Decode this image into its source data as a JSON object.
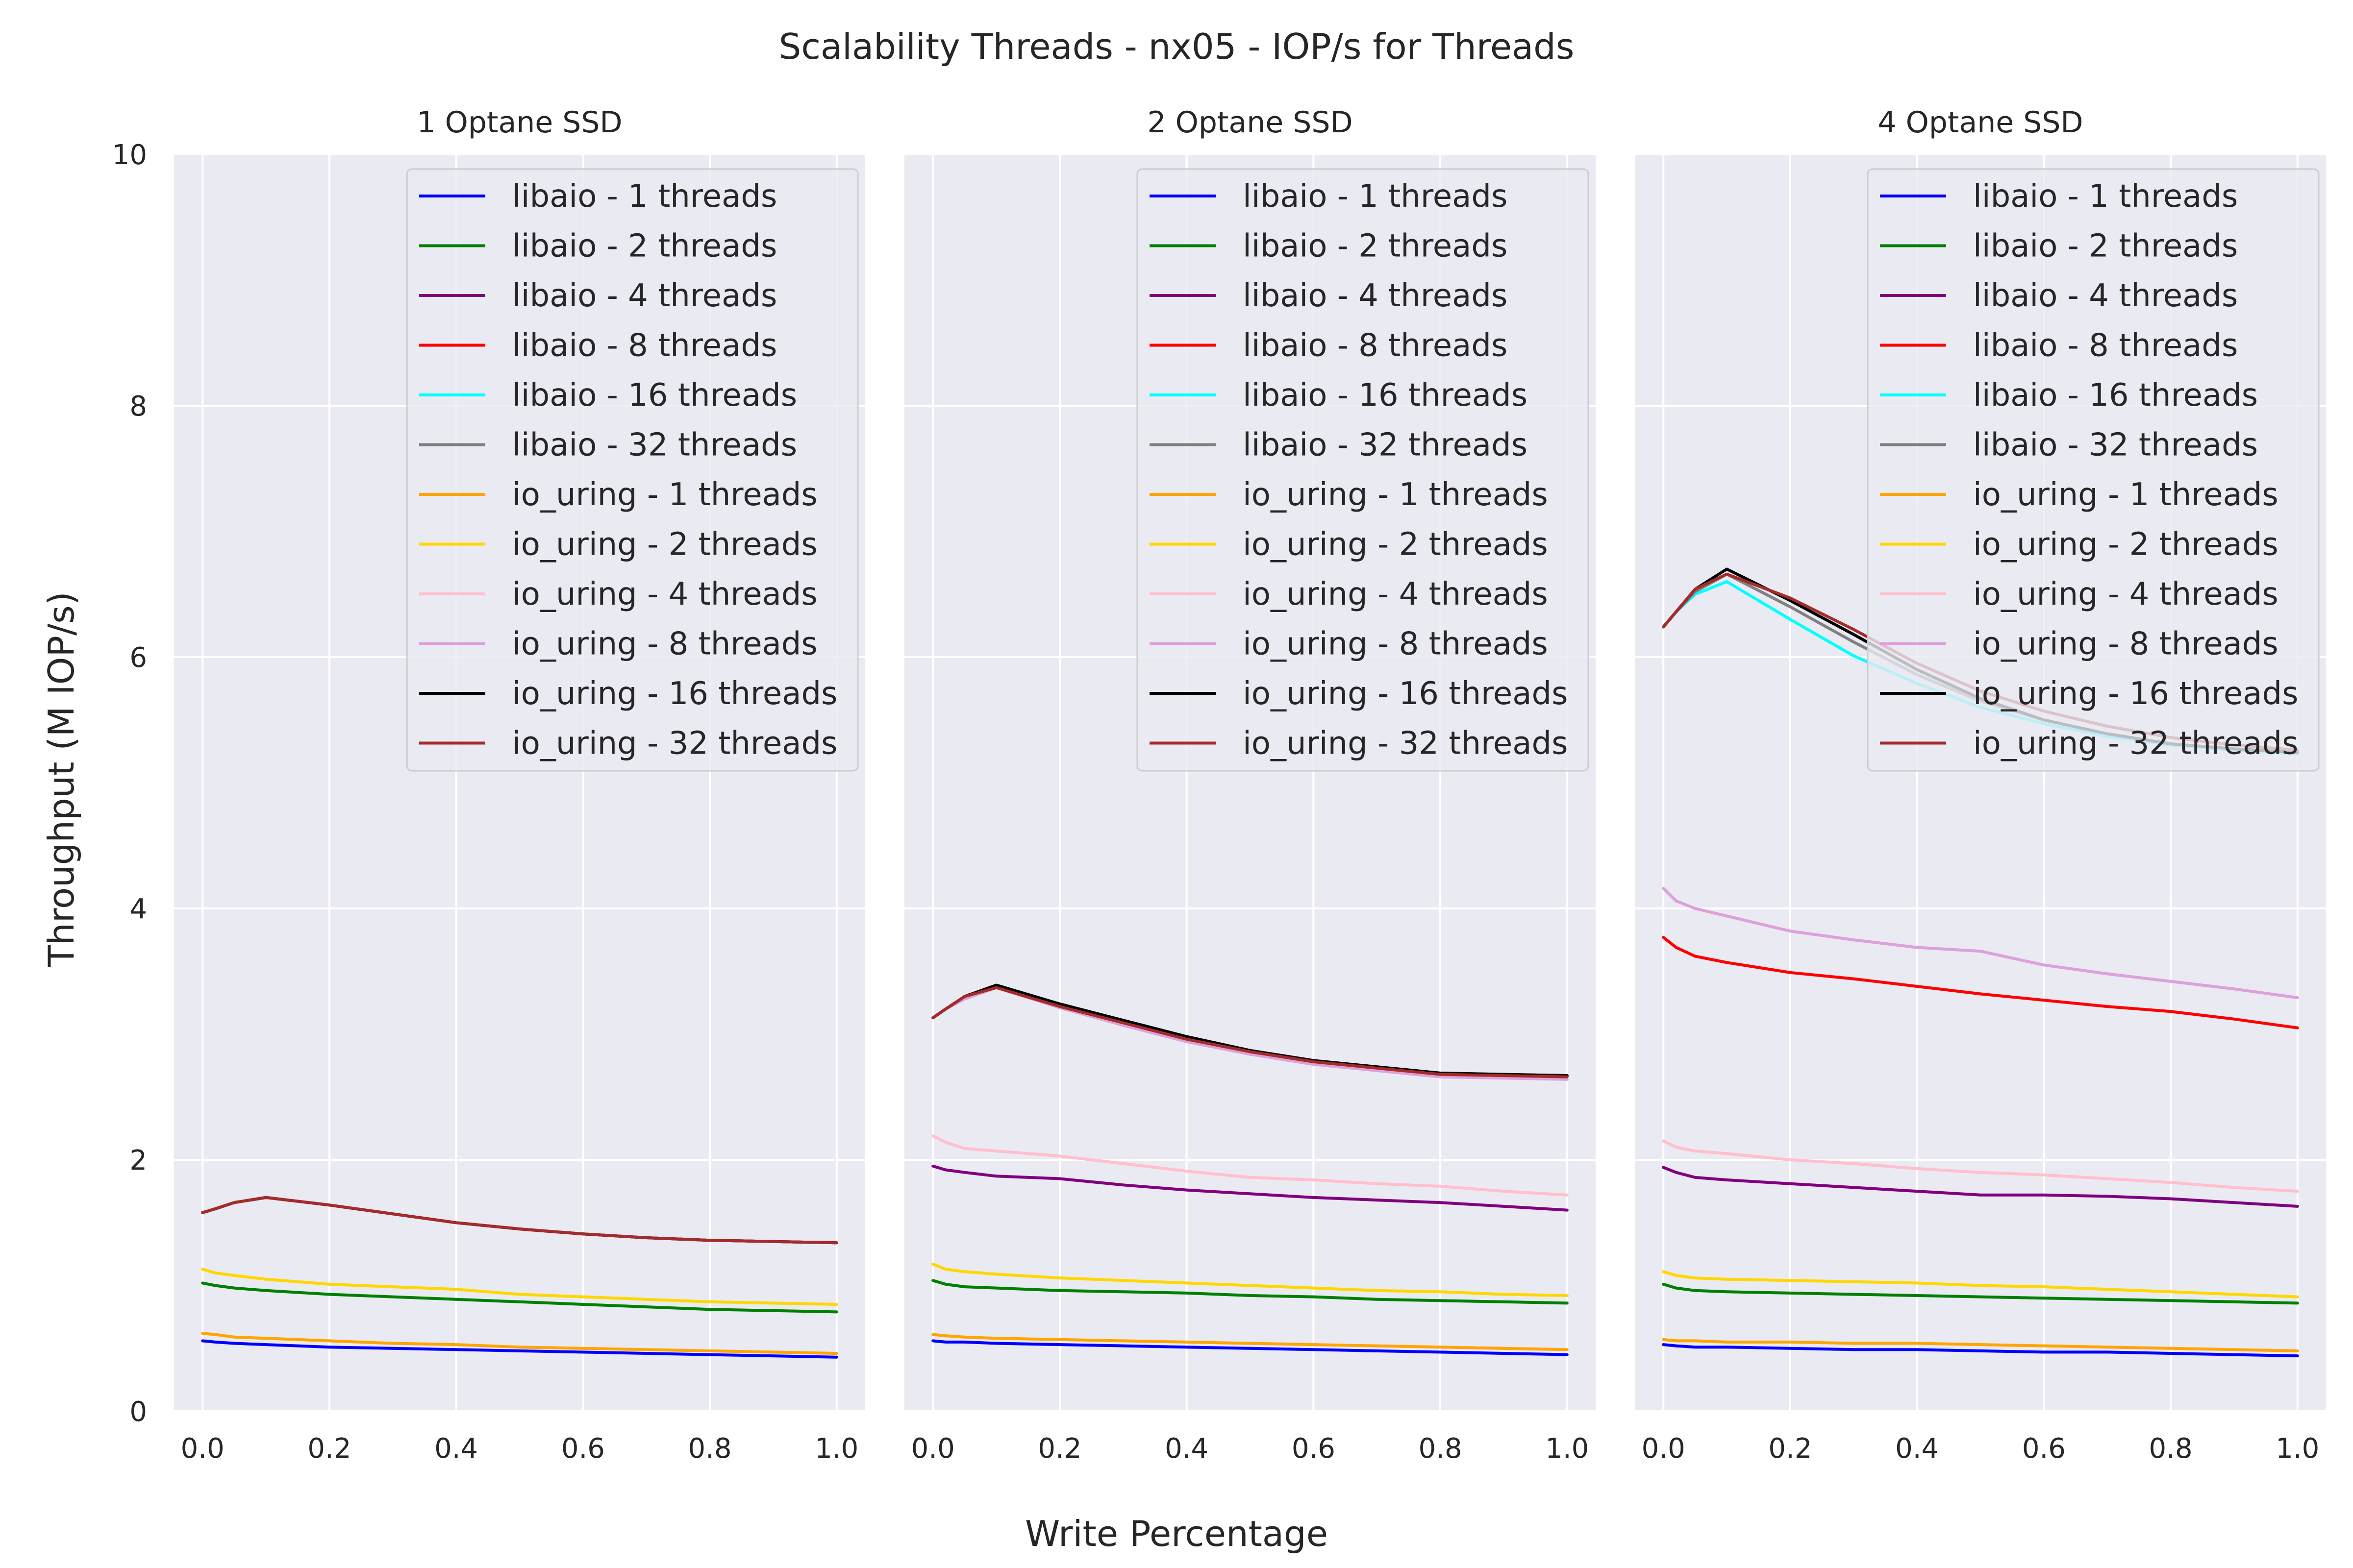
{
  "chart_data": {
    "type": "line",
    "title": "Scalability Threads - nx05 - IOP/s for Threads",
    "xlabel": "Write Percentage",
    "ylabel": "Throughput (M IOP/s)",
    "ylim": [
      0,
      10
    ],
    "xlim": [
      -0.045,
      1.045
    ],
    "yticks": [
      "0",
      "2",
      "4",
      "6",
      "8",
      "10"
    ],
    "xticks": [
      "0.0",
      "0.2",
      "0.4",
      "0.6",
      "0.8",
      "1.0"
    ],
    "grid": true,
    "legend_position": "upper-right",
    "x": [
      0.0,
      0.02,
      0.05,
      0.1,
      0.2,
      0.3,
      0.4,
      0.5,
      0.6,
      0.7,
      0.8,
      0.9,
      1.0
    ],
    "series_styles": [
      {
        "name": "libaio - 1 threads",
        "color": "#0000ff"
      },
      {
        "name": "libaio - 2 threads",
        "color": "#008000"
      },
      {
        "name": "libaio - 4 threads",
        "color": "#800080"
      },
      {
        "name": "libaio - 8 threads",
        "color": "#ff0000"
      },
      {
        "name": "libaio - 16 threads",
        "color": "#00ffff"
      },
      {
        "name": "libaio - 32 threads",
        "color": "#808080"
      },
      {
        "name": "io_uring - 1 threads",
        "color": "#ffa500"
      },
      {
        "name": "io_uring - 2 threads",
        "color": "#ffd700"
      },
      {
        "name": "io_uring - 4 threads",
        "color": "#ffc0cb"
      },
      {
        "name": "io_uring - 8 threads",
        "color": "#dda0dd"
      },
      {
        "name": "io_uring - 16 threads",
        "color": "#000000"
      },
      {
        "name": "io_uring - 32 threads",
        "color": "#a52a2a"
      }
    ],
    "panels": [
      {
        "title": "1 Optane SSD",
        "series": [
          {
            "name": "libaio - 1 threads",
            "values": [
              0.56,
              0.55,
              0.54,
              0.53,
              0.51,
              0.5,
              0.49,
              0.48,
              0.47,
              0.46,
              0.45,
              0.44,
              0.43
            ]
          },
          {
            "name": "libaio - 2 threads",
            "values": [
              1.02,
              1.0,
              0.98,
              0.96,
              0.93,
              0.91,
              0.89,
              0.87,
              0.85,
              0.83,
              0.81,
              0.8,
              0.79
            ]
          },
          {
            "name": "libaio - 4 threads",
            "values": [
              1.58,
              1.61,
              1.66,
              1.7,
              1.64,
              1.57,
              1.5,
              1.45,
              1.41,
              1.38,
              1.36,
              1.35,
              1.34
            ]
          },
          {
            "name": "libaio - 8 threads",
            "values": [
              1.58,
              1.61,
              1.66,
              1.7,
              1.64,
              1.57,
              1.5,
              1.45,
              1.41,
              1.38,
              1.36,
              1.35,
              1.34
            ]
          },
          {
            "name": "libaio - 16 threads",
            "values": [
              1.58,
              1.61,
              1.66,
              1.7,
              1.64,
              1.57,
              1.5,
              1.45,
              1.41,
              1.38,
              1.36,
              1.35,
              1.34
            ]
          },
          {
            "name": "libaio - 32 threads",
            "values": [
              1.58,
              1.61,
              1.66,
              1.7,
              1.64,
              1.57,
              1.5,
              1.45,
              1.41,
              1.38,
              1.36,
              1.35,
              1.34
            ]
          },
          {
            "name": "io_uring - 1 threads",
            "values": [
              0.62,
              0.61,
              0.59,
              0.58,
              0.56,
              0.54,
              0.53,
              0.51,
              0.5,
              0.49,
              0.48,
              0.47,
              0.46
            ]
          },
          {
            "name": "io_uring - 2 threads",
            "values": [
              1.13,
              1.1,
              1.08,
              1.05,
              1.01,
              0.99,
              0.97,
              0.93,
              0.91,
              0.89,
              0.87,
              0.86,
              0.85
            ]
          },
          {
            "name": "io_uring - 4 threads",
            "values": [
              1.58,
              1.61,
              1.66,
              1.7,
              1.64,
              1.57,
              1.5,
              1.45,
              1.41,
              1.38,
              1.36,
              1.35,
              1.34
            ]
          },
          {
            "name": "io_uring - 8 threads",
            "values": [
              1.58,
              1.61,
              1.66,
              1.7,
              1.64,
              1.57,
              1.5,
              1.45,
              1.41,
              1.38,
              1.36,
              1.35,
              1.34
            ]
          },
          {
            "name": "io_uring - 16 threads",
            "values": [
              1.58,
              1.61,
              1.66,
              1.7,
              1.64,
              1.57,
              1.5,
              1.45,
              1.41,
              1.38,
              1.36,
              1.35,
              1.34
            ]
          },
          {
            "name": "io_uring - 32 threads",
            "values": [
              1.58,
              1.61,
              1.66,
              1.7,
              1.64,
              1.57,
              1.5,
              1.45,
              1.41,
              1.38,
              1.36,
              1.35,
              1.34
            ]
          }
        ]
      },
      {
        "title": "2 Optane SSD",
        "series": [
          {
            "name": "libaio - 1 threads",
            "values": [
              0.56,
              0.55,
              0.55,
              0.54,
              0.53,
              0.52,
              0.51,
              0.5,
              0.49,
              0.48,
              0.47,
              0.46,
              0.45
            ]
          },
          {
            "name": "libaio - 2 threads",
            "values": [
              1.04,
              1.01,
              0.99,
              0.98,
              0.96,
              0.95,
              0.94,
              0.92,
              0.91,
              0.89,
              0.88,
              0.87,
              0.86
            ]
          },
          {
            "name": "libaio - 4 threads",
            "values": [
              1.95,
              1.92,
              1.9,
              1.87,
              1.85,
              1.8,
              1.76,
              1.73,
              1.7,
              1.68,
              1.66,
              1.63,
              1.6
            ]
          },
          {
            "name": "libaio - 8 threads",
            "values": [
              3.13,
              3.2,
              3.3,
              3.39,
              3.24,
              3.11,
              2.98,
              2.87,
              2.79,
              2.74,
              2.69,
              2.68,
              2.67
            ]
          },
          {
            "name": "libaio - 16 threads",
            "values": [
              3.13,
              3.2,
              3.3,
              3.39,
              3.24,
              3.11,
              2.98,
              2.87,
              2.79,
              2.74,
              2.69,
              2.68,
              2.67
            ]
          },
          {
            "name": "libaio - 32 threads",
            "values": [
              3.13,
              3.2,
              3.3,
              3.39,
              3.24,
              3.11,
              2.98,
              2.87,
              2.79,
              2.74,
              2.69,
              2.68,
              2.67
            ]
          },
          {
            "name": "io_uring - 1 threads",
            "values": [
              0.61,
              0.6,
              0.59,
              0.58,
              0.57,
              0.56,
              0.55,
              0.54,
              0.53,
              0.52,
              0.51,
              0.5,
              0.49
            ]
          },
          {
            "name": "io_uring - 2 threads",
            "values": [
              1.17,
              1.13,
              1.11,
              1.09,
              1.06,
              1.04,
              1.02,
              1.0,
              0.98,
              0.96,
              0.95,
              0.93,
              0.92
            ]
          },
          {
            "name": "io_uring - 4 threads",
            "values": [
              2.19,
              2.14,
              2.09,
              2.07,
              2.03,
              1.97,
              1.91,
              1.86,
              1.84,
              1.81,
              1.79,
              1.75,
              1.72
            ]
          },
          {
            "name": "io_uring - 8 threads",
            "values": [
              3.13,
              3.2,
              3.28,
              3.37,
              3.21,
              3.07,
              2.94,
              2.84,
              2.76,
              2.71,
              2.66,
              2.65,
              2.64
            ]
          },
          {
            "name": "io_uring - 16 threads",
            "values": [
              3.13,
              3.2,
              3.3,
              3.39,
              3.24,
              3.11,
              2.98,
              2.87,
              2.79,
              2.74,
              2.69,
              2.68,
              2.67
            ]
          },
          {
            "name": "io_uring - 32 threads",
            "values": [
              3.13,
              3.2,
              3.3,
              3.37,
              3.22,
              3.09,
              2.96,
              2.86,
              2.78,
              2.73,
              2.68,
              2.67,
              2.66
            ]
          }
        ]
      },
      {
        "title": "4 Optane SSD",
        "series": [
          {
            "name": "libaio - 1 threads",
            "values": [
              0.53,
              0.52,
              0.51,
              0.51,
              0.5,
              0.49,
              0.49,
              0.48,
              0.47,
              0.47,
              0.46,
              0.45,
              0.44
            ]
          },
          {
            "name": "libaio - 2 threads",
            "values": [
              1.01,
              0.98,
              0.96,
              0.95,
              0.94,
              0.93,
              0.92,
              0.91,
              0.9,
              0.89,
              0.88,
              0.87,
              0.86
            ]
          },
          {
            "name": "libaio - 4 threads",
            "values": [
              1.94,
              1.9,
              1.86,
              1.84,
              1.81,
              1.78,
              1.75,
              1.72,
              1.72,
              1.71,
              1.69,
              1.66,
              1.63
            ]
          },
          {
            "name": "libaio - 8 threads",
            "values": [
              3.77,
              3.69,
              3.62,
              3.57,
              3.49,
              3.44,
              3.38,
              3.32,
              3.27,
              3.22,
              3.18,
              3.12,
              3.05
            ]
          },
          {
            "name": "libaio - 16 threads",
            "values": [
              6.24,
              6.36,
              6.5,
              6.6,
              6.3,
              6.01,
              5.79,
              5.6,
              5.47,
              5.37,
              5.3,
              5.26,
              5.23
            ]
          },
          {
            "name": "libaio - 32 threads",
            "values": [
              6.24,
              6.36,
              6.52,
              6.66,
              6.4,
              6.12,
              5.86,
              5.65,
              5.5,
              5.39,
              5.31,
              5.27,
              5.24
            ]
          },
          {
            "name": "io_uring - 1 threads",
            "values": [
              0.57,
              0.56,
              0.56,
              0.55,
              0.55,
              0.54,
              0.54,
              0.53,
              0.52,
              0.51,
              0.5,
              0.49,
              0.48
            ]
          },
          {
            "name": "io_uring - 2 threads",
            "values": [
              1.11,
              1.08,
              1.06,
              1.05,
              1.04,
              1.03,
              1.02,
              1.0,
              0.99,
              0.97,
              0.95,
              0.93,
              0.91
            ]
          },
          {
            "name": "io_uring - 4 threads",
            "values": [
              2.15,
              2.1,
              2.07,
              2.05,
              2.0,
              1.97,
              1.93,
              1.9,
              1.88,
              1.85,
              1.82,
              1.78,
              1.75
            ]
          },
          {
            "name": "io_uring - 8 threads",
            "values": [
              4.16,
              4.06,
              4.0,
              3.94,
              3.82,
              3.75,
              3.69,
              3.66,
              3.55,
              3.48,
              3.42,
              3.36,
              3.29
            ]
          },
          {
            "name": "io_uring - 16 threads",
            "values": [
              6.24,
              6.36,
              6.54,
              6.7,
              6.45,
              6.18,
              5.9,
              5.67,
              5.5,
              5.39,
              5.31,
              5.27,
              5.24
            ]
          },
          {
            "name": "io_uring - 32 threads",
            "values": [
              6.24,
              6.36,
              6.54,
              6.66,
              6.47,
              6.22,
              5.95,
              5.73,
              5.57,
              5.45,
              5.36,
              5.3,
              5.26
            ]
          }
        ]
      }
    ]
  }
}
